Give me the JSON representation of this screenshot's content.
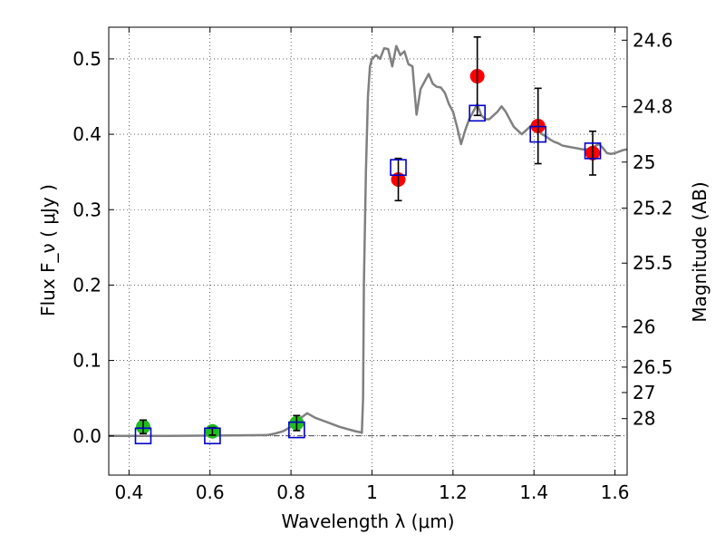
{
  "chart_data": {
    "type": "scatter",
    "title": "",
    "xlabel": "Wavelength  λ (μm)",
    "ylabel": "Flux  F_ν  ( μJy )",
    "ylabel_right": "Magnitude (AB)",
    "xlim": [
      0.35,
      1.63
    ],
    "ylim": [
      -0.052,
      0.542
    ],
    "x_ticks": [
      0.4,
      0.6,
      0.8,
      1.0,
      1.2,
      1.4,
      1.6
    ],
    "x_tick_labels": [
      "0.4",
      "0.6",
      "0.8",
      "1",
      "1.2",
      "1.4",
      "1.6"
    ],
    "y_ticks": [
      0.0,
      0.1,
      0.2,
      0.3,
      0.4,
      0.5
    ],
    "y_tick_labels": [
      "0.0",
      "0.1",
      "0.2",
      "0.3",
      "0.4",
      "0.5"
    ],
    "right_ticks": [
      {
        "label": "24.6",
        "flux": 0.5248
      },
      {
        "label": "24.8",
        "flux": 0.4365
      },
      {
        "label": "25",
        "flux": 0.3631
      },
      {
        "label": "25.2",
        "flux": 0.302
      },
      {
        "label": "25.5",
        "flux": 0.2291
      },
      {
        "label": "26",
        "flux": 0.1445
      },
      {
        "label": "26.5",
        "flux": 0.0912
      },
      {
        "label": "27",
        "flux": 0.0575
      },
      {
        "label": "28",
        "flux": 0.0229
      }
    ],
    "grid": true,
    "series": [
      {
        "kind": "line",
        "color": "#808080",
        "x": [
          0.35,
          0.5,
          0.74,
          0.76,
          0.78,
          0.8,
          0.81,
          0.83,
          0.84,
          0.86,
          0.88,
          0.9,
          0.92,
          0.94,
          0.96,
          0.97,
          0.975,
          0.978,
          0.98,
          0.985,
          0.99,
          0.995,
          1.0,
          1.01,
          1.02,
          1.03,
          1.04,
          1.05,
          1.06,
          1.07,
          1.08,
          1.09,
          1.1,
          1.11,
          1.12,
          1.13,
          1.14,
          1.15,
          1.16,
          1.17,
          1.18,
          1.19,
          1.2,
          1.21,
          1.22,
          1.23,
          1.24,
          1.25,
          1.26,
          1.27,
          1.28,
          1.29,
          1.3,
          1.31,
          1.32,
          1.33,
          1.34,
          1.35,
          1.36,
          1.37,
          1.38,
          1.39,
          1.4,
          1.41,
          1.42,
          1.43,
          1.44,
          1.45,
          1.46,
          1.47,
          1.48,
          1.49,
          1.5,
          1.51,
          1.52,
          1.53,
          1.54,
          1.55,
          1.56,
          1.57,
          1.58,
          1.59,
          1.6,
          1.61,
          1.62,
          1.63
        ],
        "y": [
          0.0,
          0.0,
          0.001,
          0.003,
          0.006,
          0.012,
          0.02,
          0.026,
          0.03,
          0.024,
          0.02,
          0.016,
          0.012,
          0.009,
          0.006,
          0.005,
          0.004,
          0.05,
          0.2,
          0.35,
          0.45,
          0.49,
          0.5,
          0.505,
          0.5,
          0.514,
          0.513,
          0.49,
          0.517,
          0.505,
          0.51,
          0.493,
          0.49,
          0.426,
          0.46,
          0.47,
          0.48,
          0.467,
          0.463,
          0.462,
          0.455,
          0.44,
          0.43,
          0.41,
          0.387,
          0.405,
          0.42,
          0.43,
          0.44,
          0.425,
          0.42,
          0.42,
          0.425,
          0.43,
          0.437,
          0.43,
          0.42,
          0.41,
          0.405,
          0.4,
          0.405,
          0.41,
          0.415,
          0.408,
          0.4,
          0.397,
          0.393,
          0.39,
          0.388,
          0.385,
          0.384,
          0.383,
          0.382,
          0.381,
          0.38,
          0.38,
          0.381,
          0.384,
          0.387,
          0.382,
          0.375,
          0.374,
          0.375,
          0.377,
          0.379,
          0.38
        ]
      },
      {
        "kind": "errorbar-points",
        "color": "#22bb22",
        "x": [
          0.435,
          0.606,
          0.814
        ],
        "y": [
          0.012,
          0.006,
          0.017
        ],
        "err": [
          0.009,
          0.005,
          0.01
        ]
      },
      {
        "kind": "errorbar-points",
        "color": "#ff0000",
        "x": [
          1.065,
          1.26,
          1.41,
          1.545
        ],
        "y": [
          0.34,
          0.477,
          0.411,
          0.375
        ],
        "err": [
          0.028,
          0.052,
          0.05,
          0.029
        ]
      },
      {
        "kind": "open-squares",
        "color": "#0000cc",
        "x": [
          0.435,
          0.606,
          0.814,
          1.065,
          1.26,
          1.41,
          1.545
        ],
        "y": [
          0.0,
          0.0,
          0.008,
          0.356,
          0.428,
          0.4,
          0.378
        ]
      }
    ],
    "reference_line": {
      "y": 0.0,
      "style": "dash-dot",
      "color": "#000000"
    }
  }
}
